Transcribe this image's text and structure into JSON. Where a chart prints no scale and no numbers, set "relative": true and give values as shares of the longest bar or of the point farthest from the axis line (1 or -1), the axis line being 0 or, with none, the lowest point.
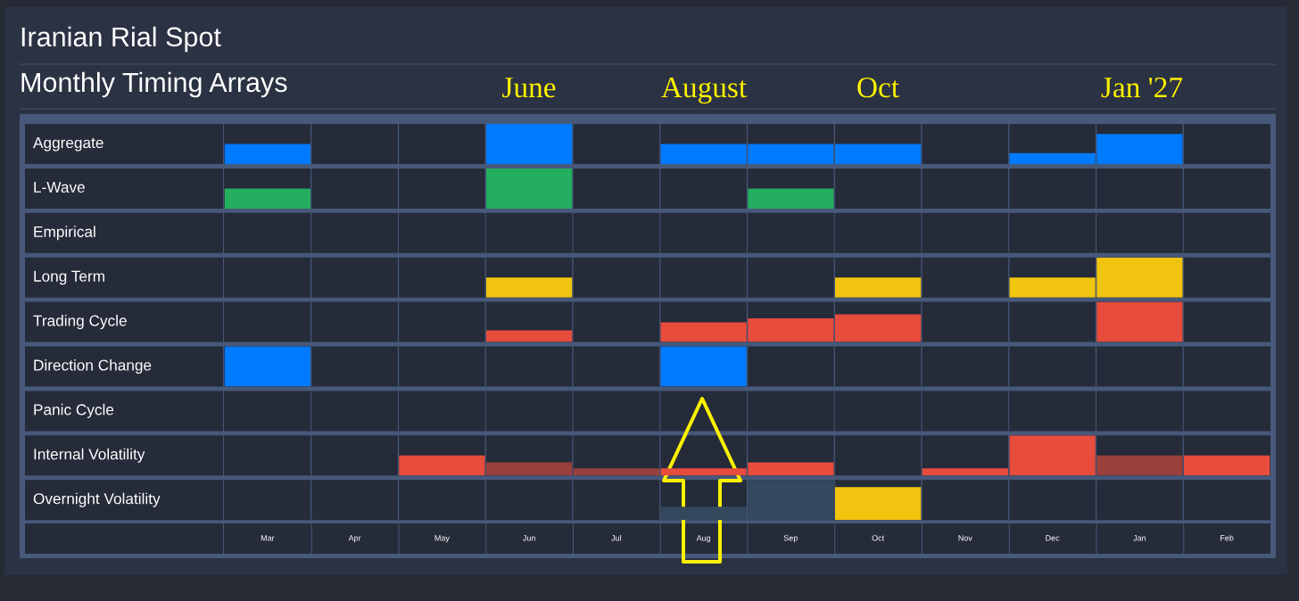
{
  "chart_data": [
    {
      "type": "bar",
      "title": "Iranian Rial Spot",
      "subtitle": "Monthly Timing Arrays",
      "annotations": [
        "June",
        "August",
        "Oct",
        "Jan '27"
      ],
      "ylabel": "Aggregate",
      "relative": true,
      "grid": "x",
      "tick_labels": false,
      "categories": [
        "Mar",
        "Apr",
        "May",
        "Jun",
        "Jul",
        "Aug",
        "Sep",
        "Oct",
        "Nov",
        "Dec",
        "Jan",
        "Feb"
      ],
      "color": "#007bff",
      "values": [
        0.5,
        0,
        0,
        1,
        0,
        0.5,
        0.5,
        0.5,
        0,
        0.27,
        0.75,
        0
      ]
    },
    {
      "type": "bar",
      "ylabel": "L-Wave",
      "relative": true,
      "grid": "x",
      "tick_labels": false,
      "categories": [
        "Mar",
        "Apr",
        "May",
        "Jun",
        "Jul",
        "Aug",
        "Sep",
        "Oct",
        "Nov",
        "Dec",
        "Jan",
        "Feb"
      ],
      "color": "#24ae60",
      "values": [
        0.5,
        0,
        0,
        1,
        0,
        0,
        0.5,
        0,
        0,
        0,
        0,
        0
      ]
    },
    {
      "type": "other",
      "title": "Empirical"
    },
    {
      "type": "bar",
      "ylabel": "Long Term",
      "relative": true,
      "grid": "x",
      "tick_labels": false,
      "categories": [
        "Mar",
        "Apr",
        "May",
        "Jun",
        "Jul",
        "Aug",
        "Sep",
        "Oct",
        "Nov",
        "Dec",
        "Jan",
        "Feb"
      ],
      "color": "#f1c40f",
      "values": [
        0,
        0,
        0,
        0.5,
        0,
        0,
        0,
        0.5,
        0,
        0.5,
        1,
        0
      ]
    },
    {
      "type": "bar",
      "ylabel": "Trading Cycle",
      "relative": true,
      "grid": "x",
      "tick_labels": false,
      "categories": [
        "Mar",
        "Apr",
        "May",
        "Jun",
        "Jul",
        "Aug",
        "Sep",
        "Oct",
        "Nov",
        "Dec",
        "Jan",
        "Feb"
      ],
      "color": "#e74c3c",
      "values": [
        0,
        0,
        0,
        0.29,
        0,
        0.49,
        0.59,
        0.69,
        0,
        0,
        1,
        0
      ]
    },
    {
      "type": "bar",
      "ylabel": "Direction Change",
      "relative": true,
      "grid": "x",
      "tick_labels": false,
      "categories": [
        "Mar",
        "Apr",
        "May",
        "Jun",
        "Jul",
        "Aug",
        "Sep",
        "Oct",
        "Nov",
        "Dec",
        "Jan",
        "Feb"
      ],
      "color": "#007bff",
      "values": [
        1,
        0,
        0,
        0,
        0,
        1,
        0,
        0,
        0,
        0,
        0,
        0
      ]
    },
    {
      "type": "other",
      "title": "Panic Cycle"
    },
    {
      "type": "bar",
      "ylabel": "Internal Volatility",
      "relative": true,
      "grid": "x",
      "tick_labels": false,
      "categories": [
        "Mar",
        "Apr",
        "May",
        "Jun",
        "Jul",
        "Aug",
        "Sep",
        "Oct",
        "Nov",
        "Dec",
        "Jan",
        "Feb"
      ],
      "colors": [
        null,
        null,
        "#e74c3c",
        "#9a403d",
        "#9a403d",
        "#e74c3c",
        "#e74c3c",
        null,
        "#e74c3c",
        "#e74c3c",
        "#9a403d",
        "#e74c3c"
      ],
      "values": [
        0,
        0,
        0.5,
        0.33,
        0.18,
        0.18,
        0.33,
        0,
        0.18,
        1,
        0.5,
        0.5
      ]
    },
    {
      "type": "bar",
      "ylabel": "Overnight Volatility",
      "relative": true,
      "grid": "x",
      "tick_labels": "x",
      "categories": [
        "Mar",
        "Apr",
        "May",
        "Jun",
        "Jul",
        "Aug",
        "Sep",
        "Oct",
        "Nov",
        "Dec",
        "Jan",
        "Feb"
      ],
      "colors": [
        null,
        null,
        null,
        null,
        null,
        "#35495e",
        "#35495e",
        "#f1c40f",
        null,
        null,
        null,
        null
      ],
      "values": [
        0,
        0,
        0,
        0,
        0,
        0.33,
        1,
        0.82,
        0,
        0,
        0,
        0
      ]
    }
  ]
}
